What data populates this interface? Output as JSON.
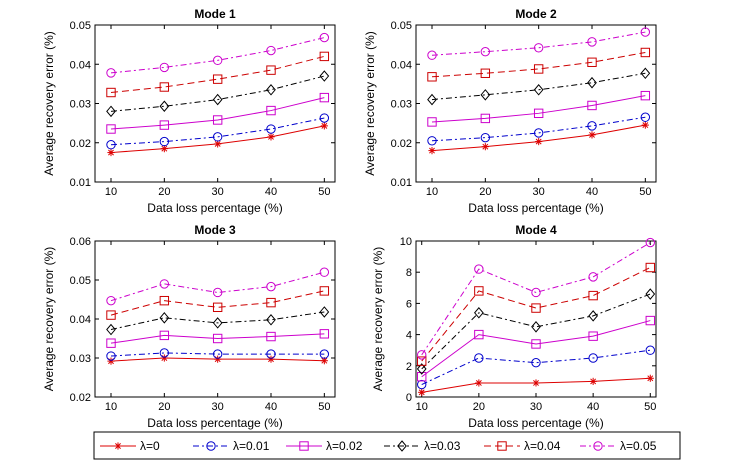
{
  "legend_position": "bottom",
  "chart_data": [
    {
      "type": "line",
      "title": "Mode 1",
      "xlabel": "Data loss percentage (%)",
      "ylabel": "Average recovery error (%)",
      "x": [
        10,
        20,
        30,
        40,
        50
      ],
      "xticks": [
        "10",
        "20",
        "30",
        "40",
        "50"
      ],
      "xlim": [
        7,
        52
      ],
      "ylim": [
        0.01,
        0.05
      ],
      "yticks": [
        "0.01",
        "0.02",
        "0.03",
        "0.04",
        "0.05"
      ],
      "grid": false,
      "series": [
        {
          "name": "λ=0",
          "values": [
            0.0175,
            0.0185,
            0.0197,
            0.0215,
            0.0243
          ]
        },
        {
          "name": "λ=0.01",
          "values": [
            0.0195,
            0.0203,
            0.0215,
            0.0235,
            0.0263
          ]
        },
        {
          "name": "λ=0.02",
          "values": [
            0.0235,
            0.0245,
            0.0258,
            0.0282,
            0.0315
          ]
        },
        {
          "name": "λ=0.03",
          "values": [
            0.028,
            0.0293,
            0.031,
            0.0335,
            0.037
          ]
        },
        {
          "name": "λ=0.04",
          "values": [
            0.0328,
            0.0342,
            0.0362,
            0.0385,
            0.042
          ]
        },
        {
          "name": "λ=0.05",
          "values": [
            0.0378,
            0.0392,
            0.041,
            0.0435,
            0.0468
          ]
        }
      ]
    },
    {
      "type": "line",
      "title": "Mode 2",
      "xlabel": "Data loss percentage (%)",
      "ylabel": "Average recovery error (%)",
      "x": [
        10,
        20,
        30,
        40,
        50
      ],
      "xticks": [
        "10",
        "20",
        "30",
        "40",
        "50"
      ],
      "xlim": [
        7,
        52
      ],
      "ylim": [
        0.01,
        0.05
      ],
      "yticks": [
        "0.01",
        "0.02",
        "0.03",
        "0.04",
        "0.05"
      ],
      "grid": false,
      "series": [
        {
          "name": "λ=0",
          "values": [
            0.018,
            0.019,
            0.0203,
            0.022,
            0.0245
          ]
        },
        {
          "name": "λ=0.01",
          "values": [
            0.0205,
            0.0213,
            0.0225,
            0.0243,
            0.0265
          ]
        },
        {
          "name": "λ=0.02",
          "values": [
            0.0253,
            0.0262,
            0.0275,
            0.0295,
            0.032
          ]
        },
        {
          "name": "λ=0.03",
          "values": [
            0.031,
            0.0322,
            0.0335,
            0.0353,
            0.0377
          ]
        },
        {
          "name": "λ=0.04",
          "values": [
            0.0368,
            0.0377,
            0.0388,
            0.0405,
            0.043
          ]
        },
        {
          "name": "λ=0.05",
          "values": [
            0.0423,
            0.0432,
            0.0442,
            0.0457,
            0.0482
          ]
        }
      ]
    },
    {
      "type": "line",
      "title": "Mode 3",
      "xlabel": "Data loss percentage (%)",
      "ylabel": "Average recovery error (%)",
      "x": [
        10,
        20,
        30,
        40,
        50
      ],
      "xticks": [
        "10",
        "20",
        "30",
        "40",
        "50"
      ],
      "xlim": [
        7,
        52
      ],
      "ylim": [
        0.02,
        0.06
      ],
      "yticks": [
        "0.02",
        "0.03",
        "0.04",
        "0.05",
        "0.06"
      ],
      "grid": false,
      "series": [
        {
          "name": "λ=0",
          "values": [
            0.0292,
            0.03,
            0.0297,
            0.0297,
            0.0293
          ]
        },
        {
          "name": "λ=0.01",
          "values": [
            0.0305,
            0.0313,
            0.031,
            0.031,
            0.031
          ]
        },
        {
          "name": "λ=0.02",
          "values": [
            0.0338,
            0.0358,
            0.035,
            0.0355,
            0.0362
          ]
        },
        {
          "name": "λ=0.03",
          "values": [
            0.0373,
            0.0403,
            0.039,
            0.0398,
            0.0418
          ]
        },
        {
          "name": "λ=0.04",
          "values": [
            0.041,
            0.0447,
            0.043,
            0.0442,
            0.0472
          ]
        },
        {
          "name": "λ=0.05",
          "values": [
            0.0447,
            0.049,
            0.0468,
            0.0483,
            0.052
          ]
        }
      ]
    },
    {
      "type": "line",
      "title": "Mode 4",
      "xlabel": "Data loss percentage (%)",
      "ylabel": "Average recovery error (%)",
      "x": [
        10,
        20,
        30,
        40,
        50
      ],
      "xticks": [
        "10",
        "20",
        "30",
        "40",
        "50"
      ],
      "xlim": [
        9,
        51
      ],
      "ylim": [
        0,
        10
      ],
      "yticks": [
        "0",
        "2",
        "4",
        "6",
        "8",
        "10"
      ],
      "grid": false,
      "series": [
        {
          "name": "λ=0",
          "values": [
            0.3,
            0.9,
            0.9,
            1.0,
            1.2
          ]
        },
        {
          "name": "λ=0.01",
          "values": [
            0.8,
            2.5,
            2.2,
            2.5,
            3.0
          ]
        },
        {
          "name": "λ=0.02",
          "values": [
            1.3,
            4.0,
            3.4,
            3.9,
            4.9
          ]
        },
        {
          "name": "λ=0.03",
          "values": [
            1.8,
            5.4,
            4.5,
            5.2,
            6.6
          ]
        },
        {
          "name": "λ=0.04",
          "values": [
            2.3,
            6.8,
            5.7,
            6.5,
            8.3
          ]
        },
        {
          "name": "λ=0.05",
          "values": [
            2.7,
            8.2,
            6.7,
            7.7,
            9.9
          ]
        }
      ]
    }
  ],
  "series_styles": [
    {
      "color": "#dd0000",
      "dash": "",
      "marker": "star"
    },
    {
      "color": "#0000cc",
      "dash": "6,3,2,3",
      "marker": "circle"
    },
    {
      "color": "#cc00cc",
      "dash": "",
      "marker": "square"
    },
    {
      "color": "#000000",
      "dash": "6,3,2,3",
      "marker": "diamond"
    },
    {
      "color": "#cc0000",
      "dash": "7,4",
      "marker": "square"
    },
    {
      "color": "#cc00cc",
      "dash": "6,3,2,3",
      "marker": "circle"
    }
  ]
}
